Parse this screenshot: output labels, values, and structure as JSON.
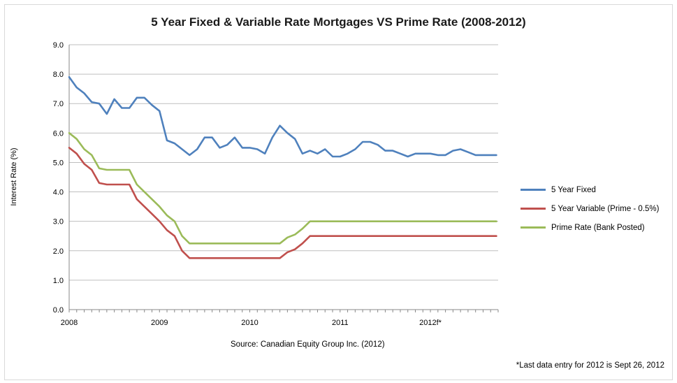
{
  "chart_data": {
    "type": "line",
    "title": "5 Year Fixed & Variable Rate Mortgages VS Prime Rate (2008-2012)",
    "xlabel": "",
    "ylabel": "Interest Rate (%)",
    "ylim": [
      0,
      9
    ],
    "xlim": [
      2008,
      2012.75
    ],
    "yticks": [
      "0.0",
      "1.0",
      "2.0",
      "3.0",
      "4.0",
      "5.0",
      "6.0",
      "7.0",
      "8.0",
      "9.0"
    ],
    "x_tick_labels": [
      {
        "x": 2008,
        "label": "2008"
      },
      {
        "x": 2009,
        "label": "2009"
      },
      {
        "x": 2010,
        "label": "2010"
      },
      {
        "x": 2011,
        "label": "2011"
      },
      {
        "x": 2012,
        "label": "2012f*"
      }
    ],
    "grid": "horizontal",
    "legend_position": "right",
    "series": [
      {
        "name": "5 Year Fixed",
        "color": "#4f81bd",
        "points": [
          [
            2008.0,
            7.9
          ],
          [
            2008.083,
            7.55
          ],
          [
            2008.167,
            7.35
          ],
          [
            2008.25,
            7.05
          ],
          [
            2008.333,
            7.0
          ],
          [
            2008.417,
            6.65
          ],
          [
            2008.5,
            7.15
          ],
          [
            2008.583,
            6.85
          ],
          [
            2008.667,
            6.85
          ],
          [
            2008.75,
            7.2
          ],
          [
            2008.833,
            7.2
          ],
          [
            2008.917,
            6.95
          ],
          [
            2009.0,
            6.75
          ],
          [
            2009.083,
            5.75
          ],
          [
            2009.167,
            5.65
          ],
          [
            2009.25,
            5.45
          ],
          [
            2009.333,
            5.25
          ],
          [
            2009.417,
            5.45
          ],
          [
            2009.5,
            5.85
          ],
          [
            2009.583,
            5.85
          ],
          [
            2009.667,
            5.5
          ],
          [
            2009.75,
            5.6
          ],
          [
            2009.833,
            5.85
          ],
          [
            2009.917,
            5.5
          ],
          [
            2010.0,
            5.5
          ],
          [
            2010.083,
            5.45
          ],
          [
            2010.167,
            5.3
          ],
          [
            2010.25,
            5.85
          ],
          [
            2010.333,
            6.25
          ],
          [
            2010.417,
            6.0
          ],
          [
            2010.5,
            5.8
          ],
          [
            2010.583,
            5.3
          ],
          [
            2010.667,
            5.4
          ],
          [
            2010.75,
            5.3
          ],
          [
            2010.833,
            5.45
          ],
          [
            2010.917,
            5.2
          ],
          [
            2011.0,
            5.2
          ],
          [
            2011.083,
            5.3
          ],
          [
            2011.167,
            5.45
          ],
          [
            2011.25,
            5.7
          ],
          [
            2011.333,
            5.7
          ],
          [
            2011.417,
            5.6
          ],
          [
            2011.5,
            5.4
          ],
          [
            2011.583,
            5.4
          ],
          [
            2011.667,
            5.3
          ],
          [
            2011.75,
            5.2
          ],
          [
            2011.833,
            5.3
          ],
          [
            2011.917,
            5.3
          ],
          [
            2012.0,
            5.3
          ],
          [
            2012.083,
            5.25
          ],
          [
            2012.167,
            5.25
          ],
          [
            2012.25,
            5.4
          ],
          [
            2012.333,
            5.45
          ],
          [
            2012.417,
            5.35
          ],
          [
            2012.5,
            5.25
          ],
          [
            2012.583,
            5.25
          ],
          [
            2012.667,
            5.25
          ],
          [
            2012.73,
            5.25
          ]
        ]
      },
      {
        "name": "5 Year Variable (Prime - 0.5%)",
        "color": "#c0504d",
        "points": [
          [
            2008.0,
            5.5
          ],
          [
            2008.083,
            5.3
          ],
          [
            2008.167,
            4.95
          ],
          [
            2008.25,
            4.75
          ],
          [
            2008.333,
            4.3
          ],
          [
            2008.417,
            4.25
          ],
          [
            2008.5,
            4.25
          ],
          [
            2008.583,
            4.25
          ],
          [
            2008.667,
            4.25
          ],
          [
            2008.75,
            3.75
          ],
          [
            2008.833,
            3.5
          ],
          [
            2008.917,
            3.25
          ],
          [
            2009.0,
            3.0
          ],
          [
            2009.083,
            2.7
          ],
          [
            2009.167,
            2.5
          ],
          [
            2009.25,
            2.0
          ],
          [
            2009.333,
            1.75
          ],
          [
            2009.5,
            1.75
          ],
          [
            2009.75,
            1.75
          ],
          [
            2010.0,
            1.75
          ],
          [
            2010.25,
            1.75
          ],
          [
            2010.333,
            1.75
          ],
          [
            2010.417,
            1.95
          ],
          [
            2010.5,
            2.05
          ],
          [
            2010.583,
            2.25
          ],
          [
            2010.667,
            2.5
          ],
          [
            2010.75,
            2.5
          ],
          [
            2011.0,
            2.5
          ],
          [
            2011.5,
            2.5
          ],
          [
            2012.0,
            2.5
          ],
          [
            2012.5,
            2.5
          ],
          [
            2012.73,
            2.5
          ]
        ]
      },
      {
        "name": "Prime Rate (Bank Posted)",
        "color": "#9bbb59",
        "points": [
          [
            2008.0,
            6.0
          ],
          [
            2008.083,
            5.8
          ],
          [
            2008.167,
            5.45
          ],
          [
            2008.25,
            5.25
          ],
          [
            2008.333,
            4.8
          ],
          [
            2008.417,
            4.75
          ],
          [
            2008.5,
            4.75
          ],
          [
            2008.583,
            4.75
          ],
          [
            2008.667,
            4.75
          ],
          [
            2008.75,
            4.25
          ],
          [
            2008.833,
            4.0
          ],
          [
            2008.917,
            3.75
          ],
          [
            2009.0,
            3.5
          ],
          [
            2009.083,
            3.2
          ],
          [
            2009.167,
            3.0
          ],
          [
            2009.25,
            2.5
          ],
          [
            2009.333,
            2.25
          ],
          [
            2009.5,
            2.25
          ],
          [
            2009.75,
            2.25
          ],
          [
            2010.0,
            2.25
          ],
          [
            2010.25,
            2.25
          ],
          [
            2010.333,
            2.25
          ],
          [
            2010.417,
            2.45
          ],
          [
            2010.5,
            2.55
          ],
          [
            2010.583,
            2.75
          ],
          [
            2010.667,
            3.0
          ],
          [
            2010.75,
            3.0
          ],
          [
            2011.0,
            3.0
          ],
          [
            2011.5,
            3.0
          ],
          [
            2012.0,
            3.0
          ],
          [
            2012.5,
            3.0
          ],
          [
            2012.73,
            3.0
          ]
        ]
      }
    ],
    "source": "Source: Canadian Equity Group Inc. (2012)",
    "footnote": "*Last data entry for 2012 is Sept 26, 2012"
  }
}
